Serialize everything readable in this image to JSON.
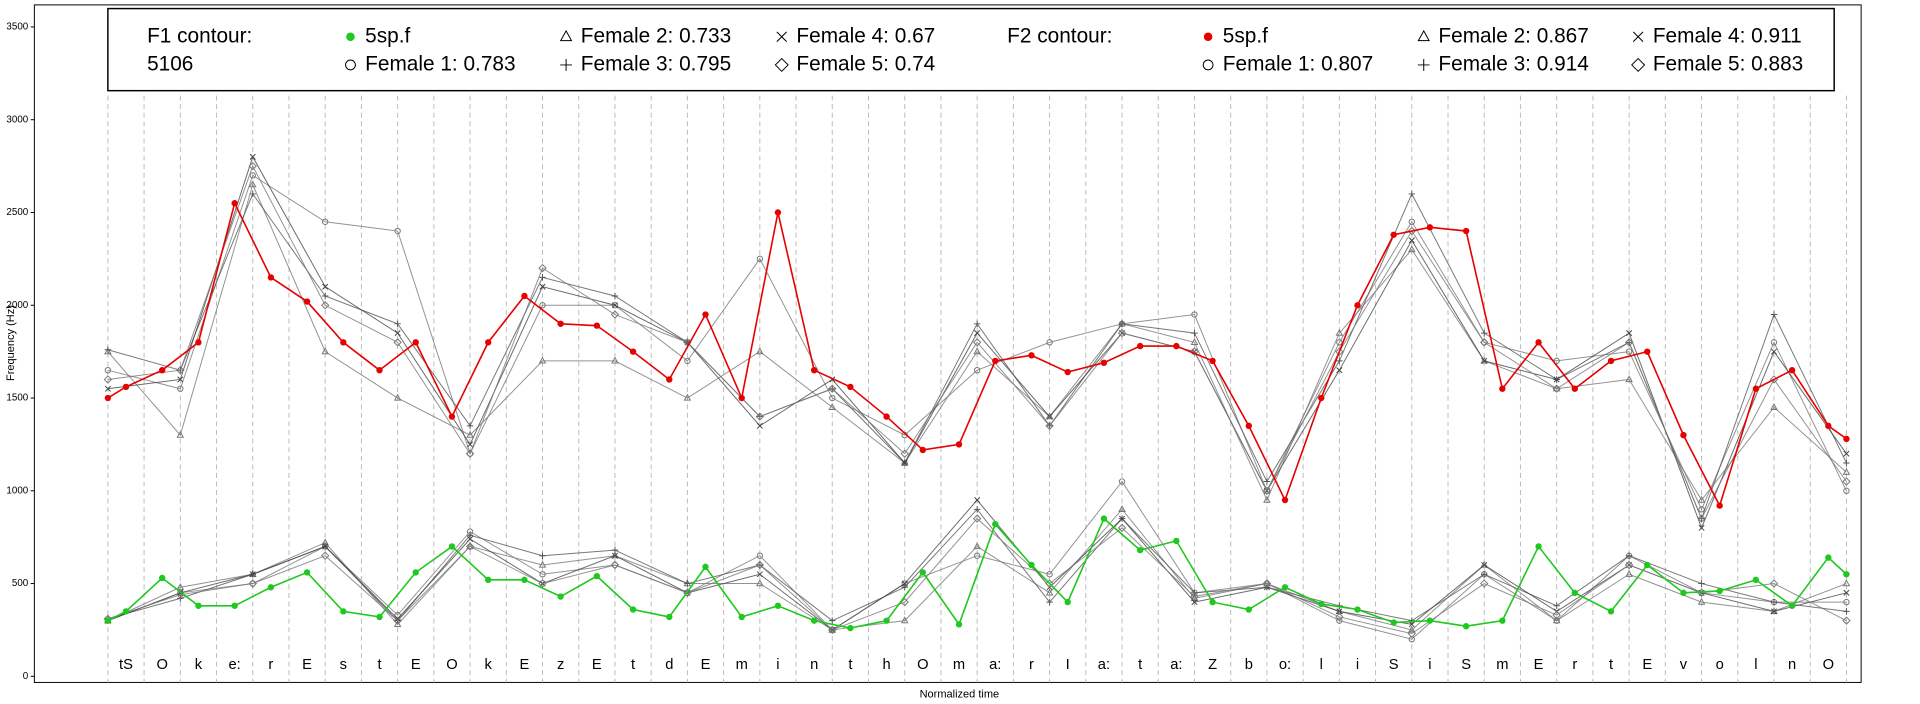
{
  "chart_data": {
    "type": "line",
    "x_label": "Normalized time",
    "y_label": "Frequency (Hz)",
    "ylim": [
      0,
      3500
    ],
    "yticks": [
      0,
      500,
      1000,
      1500,
      2000,
      2500,
      3000,
      3500
    ],
    "xlim": [
      0,
      48
    ],
    "grid": false,
    "segments": [
      "tS",
      "O",
      "k",
      "e:",
      "r",
      "E",
      "s",
      "t",
      "E",
      "O",
      "k",
      "E",
      "z",
      "E",
      "t",
      "d",
      "E",
      "m",
      "i",
      "n",
      "t",
      "h",
      "O",
      "m",
      "a:",
      "r",
      "I",
      "a:",
      "t",
      "a:",
      "Z",
      "b",
      "o:",
      "l",
      "i",
      "S",
      "i",
      "S",
      "m",
      "E",
      "r",
      "t",
      "E",
      "v",
      "o",
      "l",
      "n",
      "O"
    ],
    "legend_groups": [
      {
        "lines": [
          "F1 contour:",
          "5106"
        ]
      },
      {
        "lines": [
          "F2 contour:"
        ]
      }
    ],
    "series": [
      {
        "name": "5sp.f",
        "group": 0,
        "marker": "dot",
        "color": "#1ec81e",
        "x": [
          0,
          0.5,
          1.5,
          2.5,
          3.5,
          4.5,
          5.5,
          6.5,
          7.5,
          8.5,
          9.5,
          10.5,
          11.5,
          12.5,
          13.5,
          14.5,
          15.5,
          16.5,
          17.5,
          18.5,
          19.5,
          20.5,
          21.5,
          22.5,
          23.5,
          24.5,
          25.5,
          26.5,
          27.5,
          28.5,
          29.5,
          30.5,
          31.5,
          32.5,
          33.5,
          34.5,
          35.5,
          36.5,
          37.5,
          38.5,
          39.5,
          40.5,
          41.5,
          42.5,
          43.5,
          44.5,
          45.5,
          46.5,
          47.5,
          48
        ],
        "values": [
          300,
          350,
          530,
          380,
          380,
          480,
          560,
          350,
          320,
          560,
          700,
          520,
          520,
          430,
          540,
          360,
          320,
          590,
          320,
          380,
          300,
          260,
          300,
          560,
          280,
          820,
          600,
          400,
          850,
          680,
          730,
          400,
          360,
          480,
          390,
          360,
          290,
          300,
          270,
          300,
          700,
          450,
          350,
          600,
          450,
          460,
          520,
          380,
          640,
          550
        ]
      },
      {
        "name": "Female 1: 0.783",
        "group": 0,
        "marker": "circle",
        "color": "#777777",
        "x": [
          0,
          2,
          4,
          6,
          8,
          10,
          12,
          14,
          16,
          18,
          20,
          22,
          24,
          26,
          28,
          30,
          32,
          34,
          36,
          38,
          40,
          42,
          44,
          46,
          48
        ],
        "values": [
          300,
          450,
          500,
          700,
          330,
          780,
          550,
          600,
          450,
          650,
          250,
          500,
          650,
          550,
          1050,
          450,
          500,
          300,
          200,
          550,
          300,
          650,
          450,
          400,
          400
        ]
      },
      {
        "name": "Female 2: 0.733",
        "group": 0,
        "marker": "triangle",
        "color": "#777777",
        "x": [
          0,
          2,
          4,
          6,
          8,
          10,
          12,
          14,
          16,
          18,
          20,
          22,
          24,
          26,
          28,
          30,
          32,
          34,
          36,
          38,
          40,
          42,
          44,
          46,
          48
        ],
        "values": [
          300,
          480,
          550,
          720,
          280,
          700,
          600,
          650,
          500,
          500,
          250,
          300,
          700,
          450,
          900,
          420,
          500,
          350,
          250,
          600,
          300,
          550,
          400,
          350,
          500
        ]
      },
      {
        "name": "Female 3: 0.795",
        "group": 0,
        "marker": "plus",
        "color": "#555555",
        "x": [
          0,
          2,
          4,
          6,
          8,
          10,
          12,
          14,
          16,
          18,
          20,
          22,
          24,
          26,
          28,
          30,
          32,
          34,
          36,
          38,
          40,
          42,
          44,
          46,
          48
        ],
        "values": [
          310,
          420,
          550,
          700,
          300,
          760,
          650,
          680,
          500,
          600,
          300,
          480,
          900,
          400,
          850,
          450,
          480,
          380,
          300,
          550,
          380,
          650,
          500,
          400,
          350
        ]
      },
      {
        "name": "Female 4: 0.67",
        "group": 0,
        "marker": "x",
        "color": "#444444",
        "x": [
          0,
          2,
          4,
          6,
          8,
          10,
          12,
          14,
          16,
          18,
          20,
          22,
          24,
          26,
          28,
          30,
          32,
          34,
          36,
          38,
          40,
          42,
          44,
          46,
          48
        ],
        "values": [
          300,
          450,
          550,
          700,
          310,
          740,
          500,
          650,
          450,
          550,
          250,
          500,
          950,
          480,
          850,
          400,
          480,
          350,
          280,
          600,
          350,
          600,
          450,
          350,
          450
        ]
      },
      {
        "name": "Female 5: 0.74",
        "group": 0,
        "marker": "diamond",
        "color": "#777777",
        "x": [
          0,
          2,
          4,
          6,
          8,
          10,
          12,
          14,
          16,
          18,
          20,
          22,
          24,
          26,
          28,
          30,
          32,
          34,
          36,
          38,
          40,
          42,
          44,
          46,
          48
        ],
        "values": [
          310,
          440,
          500,
          650,
          300,
          700,
          500,
          600,
          450,
          600,
          250,
          400,
          850,
          500,
          800,
          430,
          500,
          320,
          230,
          500,
          330,
          600,
          450,
          500,
          300
        ]
      },
      {
        "name": "5sp.f",
        "group": 1,
        "marker": "dot",
        "color": "#e60000",
        "x": [
          0,
          0.5,
          1.5,
          2.5,
          3.5,
          4.5,
          5.5,
          6.5,
          7.5,
          8.5,
          9.5,
          10.5,
          11.5,
          12.5,
          13.5,
          14.5,
          15.5,
          16.5,
          17.5,
          18.5,
          19.5,
          20.5,
          21.5,
          22.5,
          23.5,
          24.5,
          25.5,
          26.5,
          27.5,
          28.5,
          29.5,
          30.5,
          31.5,
          32.5,
          33.5,
          34.5,
          35.5,
          36.5,
          37.5,
          38.5,
          39.5,
          40.5,
          41.5,
          42.5,
          43.5,
          44.5,
          45.5,
          46.5,
          47.5,
          48
        ],
        "values": [
          1500,
          1560,
          1650,
          1800,
          2550,
          2150,
          2020,
          1800,
          1650,
          1800,
          1400,
          1800,
          2050,
          1900,
          1890,
          1750,
          1600,
          1950,
          1500,
          2500,
          1650,
          1560,
          1400,
          1220,
          1250,
          1700,
          1730,
          1640,
          1690,
          1780,
          1780,
          1700,
          1350,
          950,
          1500,
          2000,
          2380,
          2420,
          2400,
          1550,
          1800,
          1550,
          1700,
          1750,
          1300,
          920,
          1550,
          1650,
          1350,
          1280
        ]
      },
      {
        "name": "Female 1: 0.807",
        "group": 1,
        "marker": "circle",
        "color": "#777777",
        "x": [
          0,
          2,
          4,
          6,
          8,
          10,
          12,
          14,
          16,
          18,
          20,
          22,
          24,
          26,
          28,
          30,
          32,
          34,
          36,
          38,
          40,
          42,
          44,
          46,
          48
        ],
        "values": [
          1650,
          1550,
          2700,
          2450,
          2400,
          1200,
          2000,
          2000,
          1700,
          2250,
          1500,
          1300,
          1650,
          1800,
          1900,
          1950,
          1000,
          1800,
          2450,
          1800,
          1700,
          1750,
          900,
          1800,
          1000
        ]
      },
      {
        "name": "Female 2: 0.867",
        "group": 1,
        "marker": "triangle",
        "color": "#777777",
        "x": [
          0,
          2,
          4,
          6,
          8,
          10,
          12,
          14,
          16,
          18,
          20,
          22,
          24,
          26,
          28,
          30,
          32,
          34,
          36,
          38,
          40,
          42,
          44,
          46,
          48
        ],
        "values": [
          1750,
          1300,
          2650,
          1750,
          1500,
          1300,
          1700,
          1700,
          1500,
          1750,
          1450,
          1150,
          1750,
          1400,
          1900,
          1800,
          950,
          1850,
          2300,
          1700,
          1550,
          1600,
          950,
          1450,
          1100
        ]
      },
      {
        "name": "Female 3: 0.914",
        "group": 1,
        "marker": "plus",
        "color": "#555555",
        "x": [
          0,
          2,
          4,
          6,
          8,
          10,
          12,
          14,
          16,
          18,
          20,
          22,
          24,
          26,
          28,
          30,
          32,
          34,
          36,
          38,
          40,
          42,
          44,
          46,
          48
        ],
        "values": [
          1760,
          1650,
          2600,
          2050,
          1900,
          1350,
          2150,
          2050,
          1800,
          1400,
          1550,
          1150,
          1900,
          1350,
          1900,
          1850,
          1050,
          1700,
          2600,
          1850,
          1600,
          1800,
          850,
          1950,
          1150
        ]
      },
      {
        "name": "Female 4: 0.911",
        "group": 1,
        "marker": "x",
        "color": "#444444",
        "x": [
          0,
          2,
          4,
          6,
          8,
          10,
          12,
          14,
          16,
          18,
          20,
          22,
          24,
          26,
          28,
          30,
          32,
          34,
          36,
          38,
          40,
          42,
          44,
          46,
          48
        ],
        "values": [
          1550,
          1600,
          2800,
          2100,
          1850,
          1250,
          2100,
          2000,
          1800,
          1350,
          1600,
          1150,
          1850,
          1400,
          1850,
          1750,
          1000,
          1650,
          2350,
          1700,
          1600,
          1850,
          800,
          1750,
          1200
        ]
      },
      {
        "name": "Female 5: 0.883",
        "group": 1,
        "marker": "diamond",
        "color": "#777777",
        "x": [
          0,
          2,
          4,
          6,
          8,
          10,
          12,
          14,
          16,
          18,
          20,
          22,
          24,
          26,
          28,
          30,
          32,
          34,
          36,
          38,
          40,
          42,
          44,
          46,
          48
        ],
        "values": [
          1600,
          1650,
          2750,
          2000,
          1800,
          1200,
          2200,
          1950,
          1800,
          1400,
          1550,
          1200,
          1800,
          1350,
          1850,
          1750,
          1000,
          1750,
          2400,
          1800,
          1550,
          1800,
          850,
          1600,
          1050
        ]
      }
    ]
  }
}
